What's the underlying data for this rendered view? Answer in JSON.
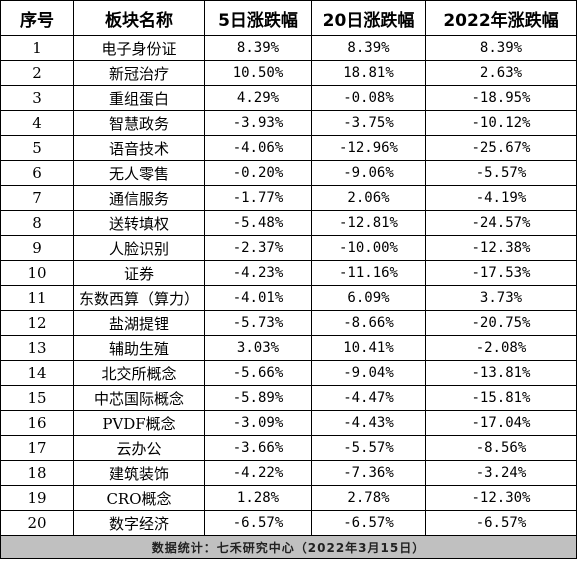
{
  "table": {
    "headers": [
      "序号",
      "板块名称",
      "5日涨跌幅",
      "20日涨跌幅",
      "2022年涨跌幅"
    ],
    "rows": [
      [
        "1",
        "电子身份证",
        "8.39%",
        "8.39%",
        "8.39%"
      ],
      [
        "2",
        "新冠治疗",
        "10.50%",
        "18.81%",
        "2.63%"
      ],
      [
        "3",
        "重组蛋白",
        "4.29%",
        "-0.08%",
        "-18.95%"
      ],
      [
        "4",
        "智慧政务",
        "-3.93%",
        "-3.75%",
        "-10.12%"
      ],
      [
        "5",
        "语音技术",
        "-4.06%",
        "-12.96%",
        "-25.67%"
      ],
      [
        "6",
        "无人零售",
        "-0.20%",
        "-9.06%",
        "-5.57%"
      ],
      [
        "7",
        "通信服务",
        "-1.77%",
        "2.06%",
        "-4.19%"
      ],
      [
        "8",
        "送转填权",
        "-5.48%",
        "-12.81%",
        "-24.57%"
      ],
      [
        "9",
        "人脸识别",
        "-2.37%",
        "-10.00%",
        "-12.38%"
      ],
      [
        "10",
        "证券",
        "-4.23%",
        "-11.16%",
        "-17.53%"
      ],
      [
        "11",
        "东数西算（算力）",
        "-4.01%",
        "6.09%",
        "3.73%"
      ],
      [
        "12",
        "盐湖提锂",
        "-5.73%",
        "-8.66%",
        "-20.75%"
      ],
      [
        "13",
        "辅助生殖",
        "3.03%",
        "10.41%",
        "-2.08%"
      ],
      [
        "14",
        "北交所概念",
        "-5.66%",
        "-9.04%",
        "-13.81%"
      ],
      [
        "15",
        "中芯国际概念",
        "-5.89%",
        "-4.47%",
        "-15.81%"
      ],
      [
        "16",
        "PVDF概念",
        "-3.09%",
        "-4.43%",
        "-17.04%"
      ],
      [
        "17",
        "云办公",
        "-3.66%",
        "-5.57%",
        "-8.56%"
      ],
      [
        "18",
        "建筑装饰",
        "-4.22%",
        "-7.36%",
        "-3.24%"
      ],
      [
        "19",
        "CRO概念",
        "1.28%",
        "2.78%",
        "-12.30%"
      ],
      [
        "20",
        "数字经济",
        "-6.57%",
        "-6.57%",
        "-6.57%"
      ]
    ],
    "footer": "数据统计：七禾研究中心（2022年3月15日）"
  }
}
